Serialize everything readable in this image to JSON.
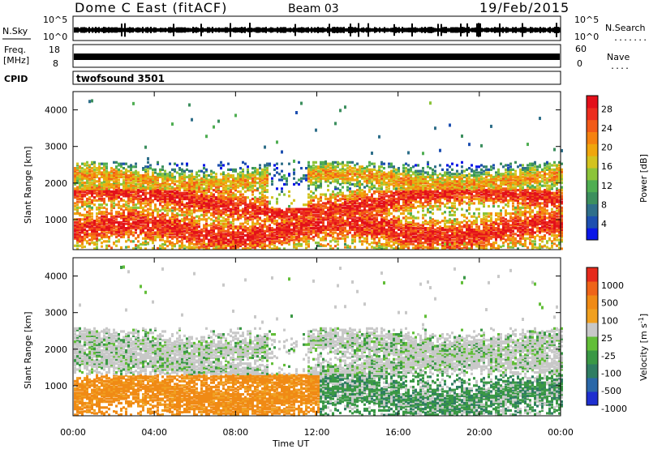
{
  "header": {
    "station": "Dome C East (fitACF)",
    "beam": "Beam 03",
    "date": "19/Feb/2015"
  },
  "strips": {
    "nsky_label": "N.Sky",
    "nsky_ticks": [
      "10^5",
      "10^0"
    ],
    "nsearch_label": "N.Search",
    "nsearch_ticks": [
      "10^5",
      "10^0"
    ],
    "freq_label": "Freq.",
    "freq_unit": "[MHz]",
    "freq_ticks": [
      "18",
      "8"
    ],
    "nave_label": "Nave",
    "nave_ticks": [
      "60",
      "0"
    ],
    "cpid_label": "CPID",
    "cpid_value": "twofsound 3501"
  },
  "axes": {
    "ylabel": "Slant Range [km]",
    "xlabel": "Time UT",
    "xticks": [
      "00:00",
      "04:00",
      "08:00",
      "12:00",
      "16:00",
      "20:00",
      "00:00"
    ],
    "yticks": [
      "1000",
      "2000",
      "3000",
      "4000"
    ]
  },
  "chart_data": [
    {
      "type": "heatmap",
      "title": "Power",
      "xlabel": "Time UT",
      "ylabel": "Slant Range [km]",
      "x_range_hours_ut": [
        0,
        24
      ],
      "y_range_km": [
        180,
        4500
      ],
      "colorbar": {
        "label": "Power [dB]",
        "range": [
          0,
          32
        ],
        "ticks": [
          "4",
          "8",
          "12",
          "16",
          "20",
          "24",
          "28"
        ],
        "colors": [
          "#0b17e8",
          "#1d4fb0",
          "#2f6f8a",
          "#3c8f5e",
          "#4fae52",
          "#8cc43a",
          "#d3c31f",
          "#f0a60d",
          "#f58210",
          "#f25a18",
          "#ec2d1e",
          "#e3101a"
        ]
      }
    },
    {
      "type": "heatmap",
      "title": "Velocity",
      "xlabel": "Time UT",
      "ylabel": "Slant Range [km]",
      "x_range_hours_ut": [
        0,
        24
      ],
      "y_range_km": [
        180,
        4500
      ],
      "colorbar": {
        "label": "Velocity [m s^-1]",
        "ticks": [
          "1000",
          "500",
          "100",
          "25",
          "-25",
          "-100",
          "-500",
          "-1000"
        ],
        "colors": [
          "#1e2fd0",
          "#2a67a8",
          "#2f7d62",
          "#3a9845",
          "#62be38",
          "#c8c8c8",
          "#f0a020",
          "#f08a15",
          "#ef6418",
          "#e62a1c"
        ]
      }
    }
  ]
}
